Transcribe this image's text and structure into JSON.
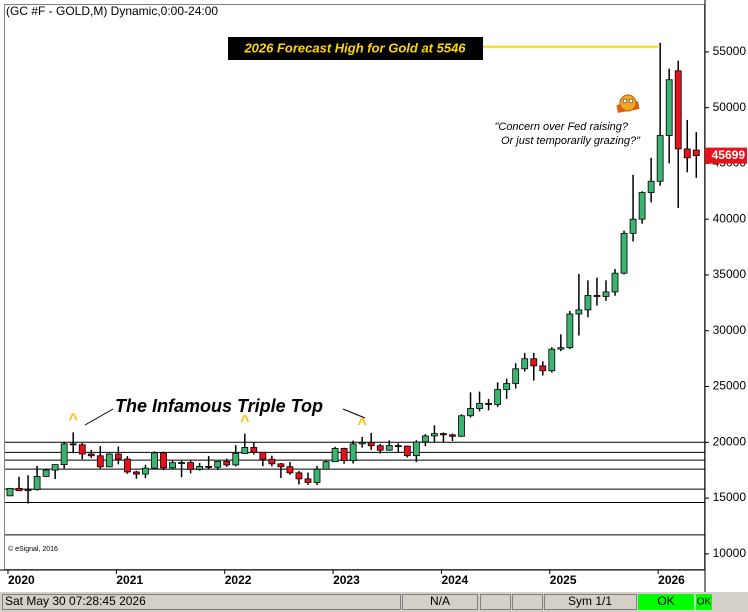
{
  "chart_data": {
    "type": "candlestick",
    "title": "(GC #F - GOLD,M) Dynamic,0:00-24:00",
    "credit": "© eSignal, 2016",
    "categories": [
      "2020",
      null,
      null,
      null,
      null,
      null,
      null,
      null,
      null,
      null,
      null,
      null,
      "2021",
      null,
      null,
      null,
      null,
      null,
      null,
      null,
      null,
      null,
      null,
      null,
      "2022",
      null,
      null,
      null,
      null,
      null,
      null,
      null,
      null,
      null,
      null,
      null,
      "2023",
      null,
      null,
      null,
      null,
      null,
      null,
      null,
      null,
      null,
      null,
      null,
      "2024",
      null,
      null,
      null,
      null,
      null,
      null,
      null,
      null,
      null,
      null,
      null,
      "2025",
      null,
      null,
      null,
      null,
      null,
      null,
      null,
      null,
      null,
      null,
      null,
      "2026",
      null,
      null,
      null,
      null
    ],
    "open": [
      15200,
      15870,
      15660,
      15770,
      16940,
      17510,
      18000,
      19860,
      19780,
      18950,
      18790,
      17800,
      18950,
      18500,
      17340,
      17150,
      17680,
      19050,
      17710,
      18170,
      18180,
      17570,
      17840,
      17760,
      18290,
      17970,
      19000,
      19540,
      19110,
      18480,
      18070,
      17810,
      17260,
      16720,
      16400,
      17590,
      18260,
      19450,
      18360,
      19860,
      19990,
      19690,
      19290,
      19700,
      19660,
      18800,
      20030,
      20570,
      20780,
      20670,
      20540,
      22380,
      23030,
      23480,
      23390,
      24730,
      25270,
      26590,
      27490,
      26850,
      26410,
      28350,
      28480,
      31500,
      31870,
      33160,
      33070,
      33480,
      35160,
      38730,
      40000,
      42390,
      43400,
      47500,
      53300,
      46300,
      46200
    ],
    "high": [
      15900,
      16920,
      17050,
      17880,
      17650,
      17960,
      20050,
      20890,
      19930,
      19330,
      19660,
      19010,
      19620,
      18760,
      17450,
      17980,
      19190,
      19160,
      18360,
      18350,
      18370,
      18150,
      18770,
      18330,
      18530,
      19740,
      20780,
      20000,
      19090,
      18800,
      18140,
      18240,
      17420,
      17290,
      17880,
      18340,
      19590,
      19520,
      20150,
      20480,
      20850,
      19860,
      20170,
      19910,
      19700,
      20180,
      20730,
      21520,
      20880,
      20780,
      22510,
      24480,
      24540,
      23880,
      25370,
      25700,
      27080,
      28010,
      28010,
      27260,
      28520,
      29680,
      31770,
      35090,
      34520,
      34760,
      34520,
      35530,
      38970,
      43980,
      42500,
      45500,
      55800,
      53500,
      54200,
      48900,
      47800
    ],
    "low": [
      15170,
      15630,
      14510,
      15680,
      16880,
      16700,
      17650,
      19020,
      18480,
      18590,
      17640,
      17770,
      18020,
      17170,
      16730,
      16780,
      17650,
      17500,
      17580,
      16870,
      17210,
      17460,
      17580,
      17530,
      17800,
      17850,
      18950,
      18900,
      17860,
      17850,
      16800,
      17090,
      16220,
      16180,
      16170,
      17540,
      18250,
      18080,
      18100,
      19530,
      19320,
      19000,
      19250,
      19130,
      18640,
      18230,
      19650,
      20040,
      20020,
      20110,
      20490,
      22230,
      22770,
      22860,
      23180,
      23900,
      24820,
      26350,
      25530,
      25990,
      26250,
      28170,
      28370,
      29570,
      31210,
      32250,
      32680,
      33140,
      35050,
      38000,
      39600,
      41500,
      43000,
      45000,
      41000,
      44200,
      43700
    ],
    "close": [
      15870,
      15660,
      15770,
      16940,
      17510,
      18000,
      19860,
      19780,
      18950,
      18790,
      17800,
      18950,
      18500,
      17340,
      17150,
      17680,
      19050,
      17710,
      18170,
      18180,
      17570,
      17840,
      17760,
      18290,
      17970,
      19000,
      19540,
      19110,
      18480,
      18070,
      17810,
      17260,
      16720,
      16400,
      17590,
      18260,
      19450,
      18360,
      19860,
      19990,
      19690,
      19290,
      19700,
      19660,
      18800,
      20030,
      20570,
      20780,
      20670,
      20540,
      22380,
      23030,
      23480,
      23390,
      24730,
      25270,
      26590,
      27490,
      26850,
      26410,
      28350,
      28480,
      31500,
      31870,
      33160,
      33070,
      33480,
      35160,
      38730,
      40000,
      42390,
      43400,
      47500,
      52500,
      46300,
      45500,
      45699
    ],
    "up_color": "#3cb371",
    "down_color": "#e8101a",
    "ylim": [
      9000,
      59200
    ],
    "yticks": [
      10000,
      15000,
      20000,
      25000,
      30000,
      35000,
      40000,
      45000,
      50000,
      55000
    ],
    "levels": [
      20000,
      19100,
      18400,
      17600,
      15800,
      14600,
      11700
    ],
    "forecast_level": 55460,
    "annotations": {
      "forecast": "2026 Forecast High for Gold at 5546",
      "triple_top": "The Infamous Triple Top",
      "carets": [
        "^",
        "^",
        "^"
      ],
      "quote_line1": "\"Concern over Fed raising?",
      "quote_line2": "Or just temporarily grazing?\""
    }
  },
  "status_bar": {
    "datetime": "Sat May 30 07:28:45 2026",
    "na": "N/A",
    "sym": "Sym 1/1",
    "ok1": "OK",
    "ok2": "OK"
  }
}
